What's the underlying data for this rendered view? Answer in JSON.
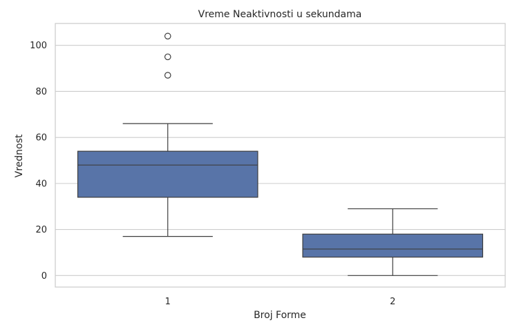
{
  "chart_data": {
    "type": "box",
    "title": "Vreme Neaktivnosti u sekundama",
    "xlabel": "Broj Forme",
    "ylabel": "Vrednost",
    "categories": [
      "1",
      "2"
    ],
    "boxes": [
      {
        "category": "1",
        "whisker_low": 17,
        "q1": 34,
        "median": 48,
        "q3": 54,
        "whisker_high": 66,
        "outliers": [
          87,
          95,
          104
        ]
      },
      {
        "category": "2",
        "whisker_low": 0,
        "q1": 8,
        "median": 11.5,
        "q3": 18,
        "whisker_high": 29,
        "outliers": []
      }
    ],
    "y_ticks": [
      0,
      20,
      40,
      60,
      80,
      100
    ],
    "ylim": [
      -5,
      109.5
    ],
    "grid": "horizontal",
    "colors": {
      "box_fill": "#5874a8",
      "line": "#3d3d3d",
      "grid": "#cccccc",
      "frame": "#cccccc"
    }
  }
}
